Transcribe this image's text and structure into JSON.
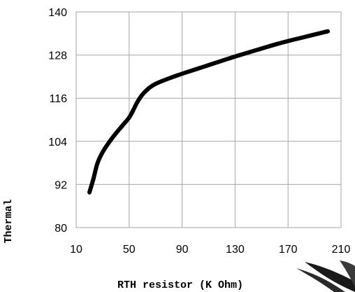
{
  "chart_data": {
    "type": "line",
    "xlabel": "RTH resistor (K Ohm)",
    "ylabel": "Thermal",
    "xlim": [
      10,
      210
    ],
    "ylim": [
      80,
      140
    ],
    "x_ticks": [
      10,
      50,
      90,
      130,
      170,
      210
    ],
    "y_ticks": [
      80,
      92,
      104,
      116,
      128,
      140
    ],
    "grid": true,
    "legend": "none",
    "series": [
      {
        "color": "#000000",
        "x": [
          20,
          23,
          26,
          30,
          35,
          40,
          45,
          50,
          53,
          56,
          60,
          65,
          70,
          80,
          90,
          100,
          110,
          120,
          130,
          140,
          150,
          160,
          170,
          180,
          190,
          200
        ],
        "y": [
          89.8,
          93.5,
          97.8,
          101.0,
          103.8,
          106.2,
          108.4,
          110.6,
          112.6,
          114.8,
          117.0,
          118.8,
          120.0,
          121.5,
          122.8,
          124.0,
          125.2,
          126.4,
          127.6,
          128.7,
          129.8,
          130.9,
          131.9,
          132.8,
          133.7,
          134.6
        ]
      }
    ]
  },
  "background_decoration": {
    "description_color": "#000000",
    "stroke_color": "#1a1a1a"
  }
}
